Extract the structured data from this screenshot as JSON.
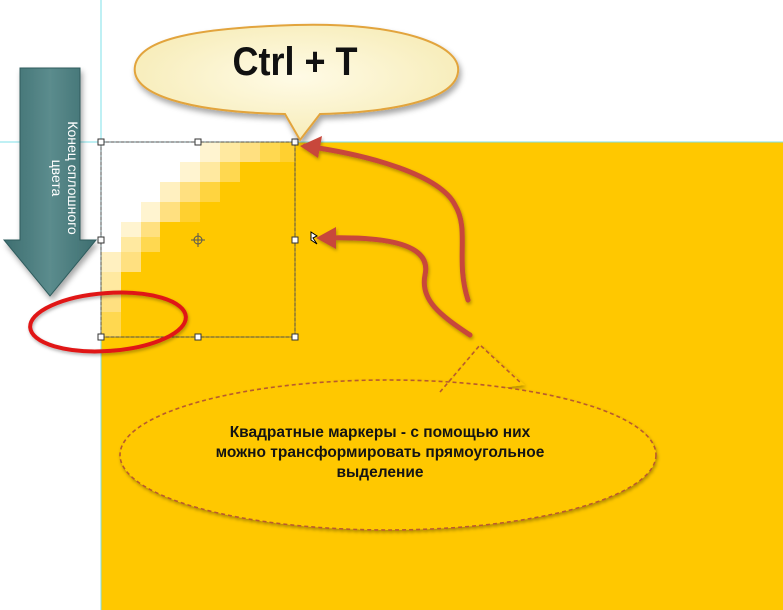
{
  "callout_shortcut": {
    "text": "Ctrl + T"
  },
  "arrow_label": {
    "line1": "Конец сплошного",
    "line2": "цвета"
  },
  "callout_note": {
    "line1": "Квадратные маркеры - с помощью них",
    "line2": "можно трансформировать прямоугольное",
    "line3": "выделение"
  },
  "colors": {
    "canvas_fill": "#FFC800",
    "speech_bubble_fill": "#FBF3C4",
    "speech_bubble_border": "#E2A43C",
    "arrow_fill": "#4E7E80",
    "red_arrow": "#C8463A",
    "red_highlight": "#E01818",
    "guide_line": "#7FE0E8"
  },
  "icons": {
    "handle": "square-handle-icon",
    "center": "crosshair-icon",
    "cursor": "scale-cursor-icon"
  }
}
